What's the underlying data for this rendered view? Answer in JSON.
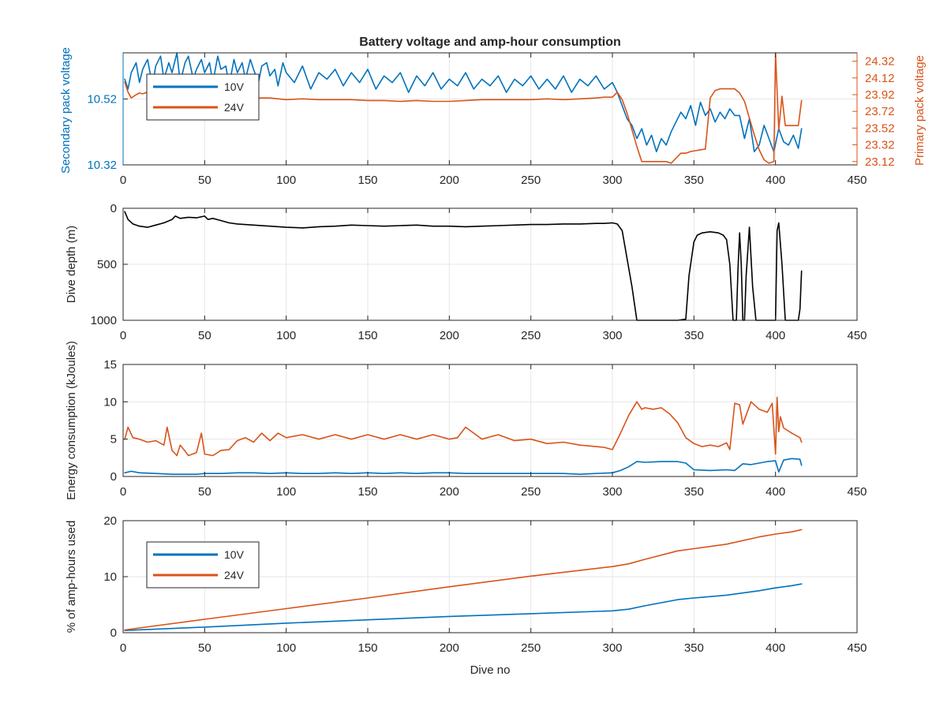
{
  "chart_data": [
    {
      "type": "line",
      "id": "voltage",
      "title": "Battery voltage and amp-hour consumption",
      "xlabel": "",
      "ylabel_left": "Secondary pack voltage",
      "ylabel_right": "Primary pack voltage",
      "xlim": [
        0,
        450
      ],
      "xticks": [
        0,
        50,
        100,
        150,
        200,
        250,
        300,
        350,
        400,
        450
      ],
      "ylim_left": [
        10.32,
        10.66
      ],
      "yticks_left": [
        "10.32",
        "10.52"
      ],
      "ylim_right": [
        23.08,
        24.42
      ],
      "yticks_right": [
        "23.12",
        "23.32",
        "23.52",
        "23.72",
        "23.92",
        "24.12",
        "24.32"
      ],
      "grid": true,
      "legend": {
        "placement": "top-left",
        "entries": [
          "10V",
          "24V"
        ]
      },
      "colors": {
        "10V": "#0072BD",
        "24V": "#D95319",
        "axis_left": "#0072BD",
        "axis_right": "#D95319"
      },
      "series": [
        {
          "name": "10V",
          "axis": "left",
          "x": [
            1,
            3,
            5,
            8,
            10,
            12,
            15,
            18,
            20,
            23,
            25,
            28,
            30,
            33,
            35,
            38,
            40,
            43,
            45,
            48,
            50,
            53,
            55,
            58,
            60,
            63,
            65,
            68,
            70,
            73,
            75,
            78,
            80,
            83,
            85,
            88,
            90,
            93,
            95,
            98,
            100,
            105,
            110,
            115,
            120,
            125,
            130,
            135,
            140,
            145,
            150,
            155,
            160,
            165,
            170,
            175,
            180,
            185,
            190,
            195,
            200,
            205,
            210,
            215,
            220,
            225,
            230,
            235,
            240,
            245,
            250,
            255,
            260,
            265,
            270,
            275,
            280,
            285,
            290,
            295,
            300,
            303,
            306,
            309,
            312,
            315,
            318,
            321,
            324,
            327,
            330,
            333,
            336,
            339,
            342,
            345,
            348,
            351,
            354,
            357,
            360,
            363,
            366,
            369,
            372,
            375,
            378,
            381,
            384,
            387,
            390,
            393,
            396,
            399,
            402,
            405,
            408,
            411,
            414,
            416
          ],
          "y": [
            10.58,
            10.55,
            10.6,
            10.63,
            10.57,
            10.61,
            10.64,
            10.56,
            10.62,
            10.65,
            10.58,
            10.63,
            10.6,
            10.66,
            10.57,
            10.63,
            10.65,
            10.58,
            10.61,
            10.64,
            10.6,
            10.63,
            10.57,
            10.65,
            10.61,
            10.62,
            10.56,
            10.64,
            10.6,
            10.63,
            10.58,
            10.64,
            10.61,
            10.57,
            10.62,
            10.63,
            10.59,
            10.61,
            10.56,
            10.63,
            10.6,
            10.57,
            10.62,
            10.55,
            10.6,
            10.58,
            10.61,
            10.56,
            10.6,
            10.57,
            10.61,
            10.55,
            10.59,
            10.57,
            10.6,
            10.54,
            10.59,
            10.56,
            10.6,
            10.55,
            10.58,
            10.56,
            10.6,
            10.55,
            10.58,
            10.56,
            10.59,
            10.54,
            10.58,
            10.56,
            10.59,
            10.55,
            10.58,
            10.55,
            10.59,
            10.54,
            10.58,
            10.56,
            10.59,
            10.55,
            10.57,
            10.54,
            10.5,
            10.46,
            10.44,
            10.4,
            10.43,
            10.38,
            10.41,
            10.36,
            10.4,
            10.38,
            10.42,
            10.45,
            10.48,
            10.46,
            10.5,
            10.44,
            10.51,
            10.47,
            10.49,
            10.45,
            10.48,
            10.46,
            10.49,
            10.47,
            10.47,
            10.4,
            10.46,
            10.36,
            10.38,
            10.44,
            10.4,
            10.36,
            10.43,
            10.39,
            10.38,
            10.41,
            10.37,
            10.43
          ]
        },
        {
          "name": "24V",
          "axis": "right",
          "x": [
            1,
            3,
            5,
            8,
            10,
            12,
            15,
            20,
            25,
            30,
            35,
            40,
            45,
            50,
            55,
            60,
            70,
            80,
            90,
            100,
            110,
            120,
            130,
            140,
            150,
            160,
            170,
            180,
            190,
            200,
            210,
            220,
            230,
            240,
            250,
            260,
            270,
            280,
            290,
            295,
            300,
            303,
            306,
            309,
            312,
            315,
            318,
            321,
            324,
            327,
            330,
            333,
            336,
            339,
            342,
            345,
            348,
            351,
            354,
            357,
            360,
            363,
            366,
            369,
            372,
            375,
            378,
            381,
            384,
            387,
            390,
            393,
            396,
            399,
            400,
            402,
            404,
            406,
            408,
            410,
            412,
            414,
            416
          ],
          "y": [
            24.07,
            23.95,
            23.88,
            23.92,
            23.94,
            23.93,
            23.95,
            23.93,
            23.92,
            23.91,
            23.92,
            23.93,
            23.92,
            23.91,
            23.9,
            23.9,
            23.89,
            23.88,
            23.88,
            23.86,
            23.87,
            23.86,
            23.86,
            23.86,
            23.85,
            23.85,
            23.84,
            23.85,
            23.84,
            23.84,
            23.85,
            23.86,
            23.86,
            23.86,
            23.86,
            23.87,
            23.86,
            23.87,
            23.88,
            23.89,
            23.89,
            23.95,
            23.86,
            23.7,
            23.5,
            23.3,
            23.12,
            23.12,
            23.12,
            23.12,
            23.12,
            23.12,
            23.1,
            23.16,
            23.22,
            23.22,
            23.24,
            23.25,
            23.26,
            23.27,
            23.88,
            23.97,
            23.99,
            23.99,
            23.99,
            23.99,
            23.94,
            23.84,
            23.64,
            23.44,
            23.26,
            23.14,
            23.1,
            23.12,
            24.42,
            23.5,
            23.9,
            23.55,
            23.55,
            23.55,
            23.55,
            23.55,
            23.85
          ]
        }
      ]
    },
    {
      "type": "line",
      "id": "depth",
      "title": "",
      "xlabel": "",
      "ylabel": "Dive depth (m)",
      "xlim": [
        0,
        450
      ],
      "xticks": [
        0,
        50,
        100,
        150,
        200,
        250,
        300,
        350,
        400,
        450
      ],
      "ylim": [
        0,
        1000
      ],
      "yticks": [
        "0",
        "500",
        "1000"
      ],
      "y_reversed": true,
      "grid": true,
      "colors": {
        "line": "#000000"
      },
      "series": [
        {
          "name": "",
          "x": [
            1,
            3,
            6,
            10,
            15,
            20,
            25,
            30,
            32,
            35,
            40,
            45,
            50,
            52,
            55,
            60,
            65,
            70,
            80,
            90,
            100,
            110,
            120,
            130,
            140,
            150,
            160,
            170,
            180,
            190,
            200,
            210,
            220,
            230,
            240,
            250,
            260,
            270,
            280,
            290,
            295,
            300,
            303,
            306,
            309,
            312,
            315,
            318,
            320,
            330,
            340,
            345,
            347,
            350,
            352,
            355,
            360,
            365,
            368,
            370,
            372,
            374,
            376,
            377,
            378,
            379,
            380,
            381,
            382,
            384,
            386,
            388,
            390,
            392,
            395,
            398,
            400,
            401,
            402,
            404,
            406,
            408,
            410,
            412,
            414,
            415,
            416
          ],
          "y": [
            30,
            100,
            140,
            160,
            170,
            150,
            130,
            100,
            70,
            90,
            80,
            85,
            70,
            100,
            90,
            110,
            130,
            140,
            150,
            160,
            170,
            175,
            165,
            160,
            150,
            155,
            160,
            155,
            150,
            160,
            160,
            165,
            160,
            155,
            150,
            145,
            145,
            140,
            140,
            135,
            135,
            130,
            140,
            200,
            450,
            700,
            1000,
            1000,
            1000,
            1000,
            1000,
            990,
            600,
            300,
            240,
            220,
            210,
            220,
            240,
            280,
            500,
            1000,
            1000,
            550,
            220,
            500,
            1000,
            1000,
            600,
            170,
            700,
            1000,
            1000,
            1000,
            1000,
            1000,
            1000,
            200,
            130,
            500,
            1000,
            1000,
            1000,
            1000,
            1000,
            900,
            560
          ]
        }
      ]
    },
    {
      "type": "line",
      "id": "energy",
      "title": "",
      "xlabel": "",
      "ylabel": "Energy consumption (kJoules)",
      "xlim": [
        0,
        450
      ],
      "xticks": [
        0,
        50,
        100,
        150,
        200,
        250,
        300,
        350,
        400,
        450
      ],
      "ylim": [
        0,
        15
      ],
      "yticks": [
        "0",
        "5",
        "10",
        "15"
      ],
      "grid": true,
      "colors": {
        "10V": "#0072BD",
        "24V": "#D95319"
      },
      "series": [
        {
          "name": "10V",
          "x": [
            1,
            5,
            10,
            20,
            30,
            40,
            45,
            50,
            60,
            70,
            80,
            90,
            100,
            110,
            120,
            130,
            140,
            150,
            160,
            170,
            180,
            190,
            200,
            210,
            220,
            230,
            240,
            250,
            260,
            270,
            280,
            290,
            300,
            305,
            310,
            315,
            320,
            330,
            340,
            345,
            350,
            360,
            370,
            375,
            380,
            385,
            390,
            395,
            400,
            402,
            405,
            410,
            415,
            416
          ],
          "y": [
            0.5,
            0.7,
            0.5,
            0.4,
            0.3,
            0.3,
            0.3,
            0.4,
            0.4,
            0.5,
            0.5,
            0.4,
            0.5,
            0.4,
            0.4,
            0.5,
            0.4,
            0.5,
            0.4,
            0.5,
            0.4,
            0.5,
            0.5,
            0.4,
            0.4,
            0.4,
            0.4,
            0.4,
            0.4,
            0.4,
            0.3,
            0.4,
            0.5,
            0.8,
            1.3,
            2.0,
            1.9,
            2.0,
            2.0,
            1.8,
            0.9,
            0.8,
            0.9,
            0.8,
            1.7,
            1.6,
            1.8,
            2.0,
            2.1,
            0.6,
            2.2,
            2.4,
            2.3,
            1.5
          ]
        },
        {
          "name": "24V",
          "x": [
            1,
            3,
            6,
            10,
            15,
            20,
            25,
            27,
            30,
            33,
            35,
            38,
            40,
            45,
            48,
            50,
            55,
            60,
            65,
            70,
            75,
            80,
            85,
            90,
            95,
            100,
            110,
            120,
            130,
            140,
            150,
            160,
            170,
            180,
            190,
            200,
            205,
            210,
            220,
            230,
            240,
            250,
            260,
            270,
            280,
            290,
            295,
            300,
            305,
            310,
            315,
            318,
            320,
            325,
            330,
            335,
            340,
            345,
            350,
            355,
            360,
            365,
            370,
            372,
            375,
            378,
            380,
            385,
            390,
            395,
            398,
            400,
            401,
            402,
            403,
            405,
            410,
            415,
            416
          ],
          "y": [
            5.0,
            6.6,
            5.2,
            5.0,
            4.6,
            4.8,
            4.2,
            6.6,
            3.5,
            2.8,
            4.2,
            3.4,
            2.8,
            3.2,
            5.8,
            3.0,
            2.8,
            3.5,
            3.6,
            4.8,
            5.2,
            4.6,
            5.8,
            4.8,
            5.8,
            5.2,
            5.6,
            5.0,
            5.6,
            5.0,
            5.6,
            5.0,
            5.6,
            5.0,
            5.6,
            5.0,
            5.2,
            6.6,
            5.0,
            5.6,
            4.8,
            5.0,
            4.4,
            4.6,
            4.2,
            4.0,
            3.9,
            3.6,
            5.8,
            8.2,
            10.0,
            9.0,
            9.2,
            9.0,
            9.2,
            8.4,
            7.2,
            5.2,
            4.4,
            4.0,
            4.2,
            4.0,
            4.5,
            3.6,
            9.8,
            9.6,
            7.0,
            10.0,
            9.0,
            8.6,
            9.8,
            3.0,
            10.6,
            6.0,
            8.0,
            6.5,
            5.8,
            5.2,
            4.6
          ]
        }
      ]
    },
    {
      "type": "line",
      "id": "amphours",
      "title": "",
      "xlabel": "Dive no",
      "ylabel": "% of amp-hours used",
      "xlim": [
        0,
        450
      ],
      "xticks": [
        0,
        50,
        100,
        150,
        200,
        250,
        300,
        350,
        400,
        450
      ],
      "ylim": [
        0,
        20
      ],
      "yticks": [
        "0",
        "10",
        "20"
      ],
      "grid": true,
      "legend": {
        "placement": "top-left",
        "entries": [
          "10V",
          "24V"
        ]
      },
      "colors": {
        "10V": "#0072BD",
        "24V": "#D95319"
      },
      "series": [
        {
          "name": "10V",
          "x": [
            1,
            50,
            100,
            150,
            200,
            250,
            300,
            310,
            320,
            340,
            350,
            370,
            390,
            400,
            410,
            416
          ],
          "y": [
            0.4,
            1.0,
            1.7,
            2.3,
            2.9,
            3.4,
            3.9,
            4.2,
            4.8,
            5.9,
            6.2,
            6.7,
            7.5,
            8.0,
            8.4,
            8.7
          ]
        },
        {
          "name": "24V",
          "x": [
            1,
            50,
            100,
            150,
            200,
            250,
            300,
            310,
            320,
            340,
            350,
            370,
            390,
            400,
            410,
            416
          ],
          "y": [
            0.5,
            2.4,
            4.3,
            6.2,
            8.2,
            10.1,
            11.8,
            12.3,
            13.1,
            14.6,
            15.0,
            15.8,
            17.1,
            17.6,
            18.0,
            18.4
          ]
        }
      ]
    }
  ]
}
